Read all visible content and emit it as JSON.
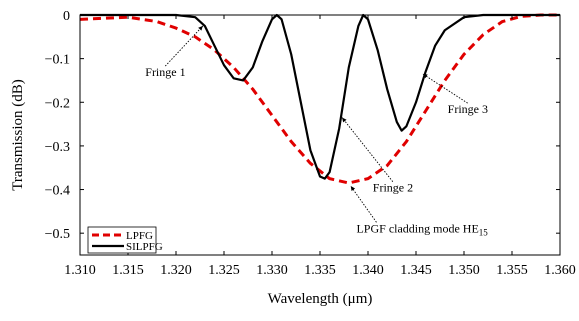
{
  "chart_data": {
    "type": "line",
    "xlabel": "Wavelength (μm)",
    "ylabel": "Transmission (dB)",
    "xlim": [
      1.31,
      1.36
    ],
    "ylim": [
      -0.55,
      0
    ],
    "xticks": [
      "1.310",
      "1.315",
      "1.320",
      "1.325",
      "1.330",
      "1.335",
      "1.340",
      "1.345",
      "1.350",
      "1.355",
      "1.360"
    ],
    "yticks": [
      "0",
      "−0.1",
      "−0.2",
      "−0.3",
      "−0.4",
      "−0.5"
    ],
    "yticks_values": [
      0,
      -0.1,
      -0.2,
      -0.3,
      -0.4,
      -0.5
    ],
    "grid": false,
    "legend_position": "bottom-left",
    "series": [
      {
        "name": "LPFG",
        "color": "#e00000",
        "style": "dashed",
        "x": [
          1.31,
          1.315,
          1.318,
          1.32,
          1.322,
          1.324,
          1.326,
          1.328,
          1.33,
          1.332,
          1.334,
          1.336,
          1.338,
          1.34,
          1.342,
          1.344,
          1.346,
          1.348,
          1.35,
          1.352,
          1.354,
          1.356,
          1.358,
          1.36
        ],
        "y": [
          -0.01,
          -0.005,
          -0.015,
          -0.03,
          -0.05,
          -0.08,
          -0.12,
          -0.17,
          -0.23,
          -0.29,
          -0.34,
          -0.375,
          -0.385,
          -0.375,
          -0.345,
          -0.29,
          -0.22,
          -0.15,
          -0.09,
          -0.045,
          -0.015,
          -0.003,
          0,
          0
        ]
      },
      {
        "name": "SILPFG",
        "color": "#000000",
        "style": "solid",
        "x": [
          1.31,
          1.312,
          1.314,
          1.316,
          1.318,
          1.32,
          1.322,
          1.323,
          1.324,
          1.325,
          1.326,
          1.327,
          1.328,
          1.329,
          1.33,
          1.3305,
          1.331,
          1.332,
          1.333,
          1.334,
          1.335,
          1.3355,
          1.336,
          1.337,
          1.338,
          1.339,
          1.3395,
          1.34,
          1.341,
          1.342,
          1.343,
          1.3435,
          1.344,
          1.345,
          1.346,
          1.347,
          1.348,
          1.35,
          1.352,
          1.354,
          1.356,
          1.358,
          1.36
        ],
        "y": [
          0,
          0,
          0,
          0,
          0,
          0,
          -0.005,
          -0.025,
          -0.07,
          -0.115,
          -0.145,
          -0.15,
          -0.12,
          -0.06,
          -0.01,
          0,
          -0.01,
          -0.09,
          -0.2,
          -0.31,
          -0.37,
          -0.375,
          -0.36,
          -0.26,
          -0.12,
          -0.025,
          0,
          -0.01,
          -0.08,
          -0.17,
          -0.245,
          -0.265,
          -0.255,
          -0.2,
          -0.13,
          -0.07,
          -0.035,
          -0.005,
          0,
          0,
          0,
          0,
          0
        ]
      }
    ],
    "annotations": [
      {
        "text": "Fringe 1",
        "point": [
          1.3228,
          -0.025
        ],
        "label_at": [
          1.3168,
          -0.14
        ],
        "anchor": "start"
      },
      {
        "text": "Fringe 2",
        "point": [
          1.3373,
          -0.235
        ],
        "label_at": [
          1.3405,
          -0.405
        ],
        "anchor": "start"
      },
      {
        "text": "Fringe 3",
        "point": [
          1.3457,
          -0.135
        ],
        "label_at": [
          1.3483,
          -0.225
        ],
        "anchor": "start"
      },
      {
        "text": "LPGF cladding mode HE",
        "subscript": "15",
        "point": [
          1.3382,
          -0.392
        ],
        "label_at": [
          1.3388,
          -0.498
        ],
        "anchor": "start"
      }
    ]
  }
}
